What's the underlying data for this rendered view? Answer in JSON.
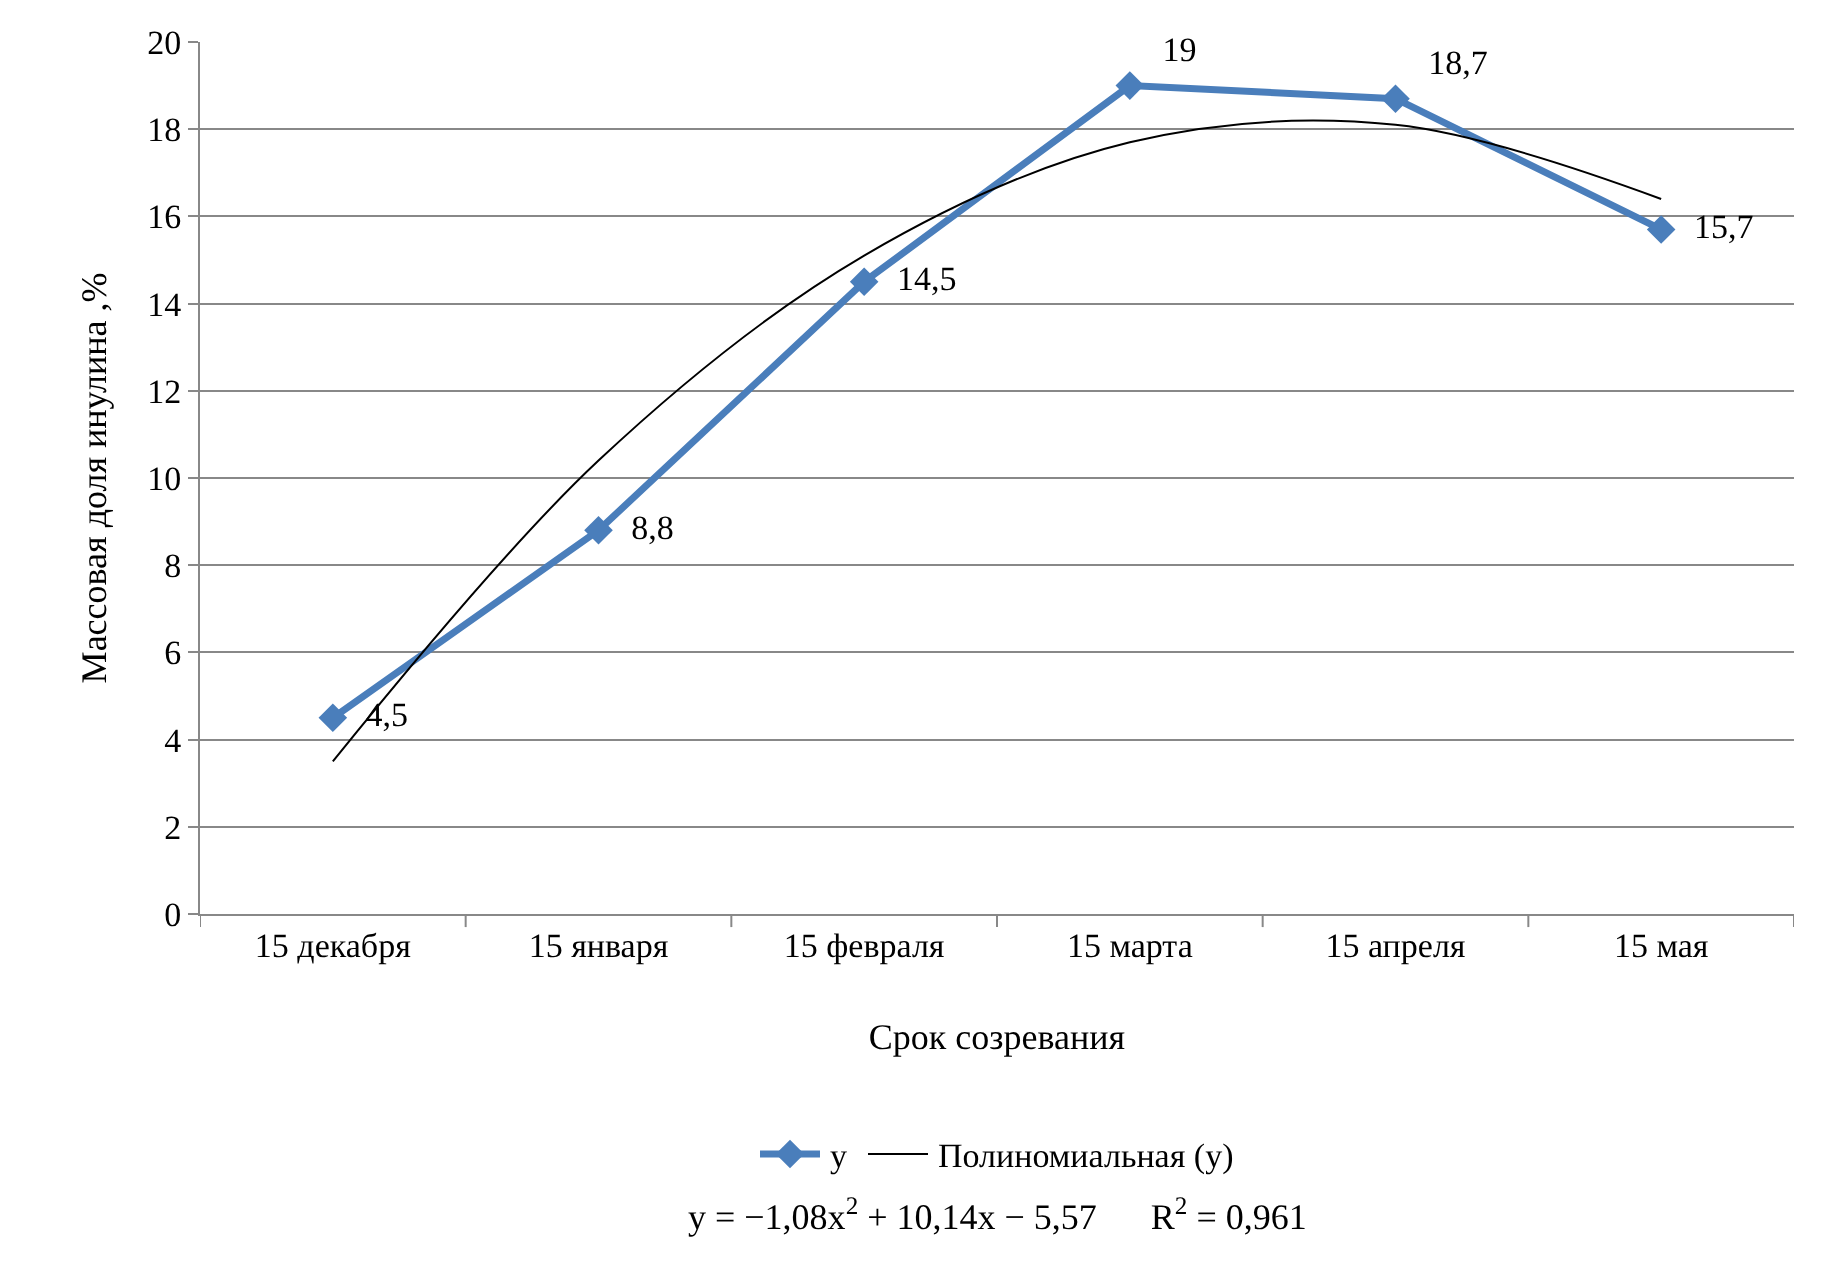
{
  "chart_data": {
    "type": "line",
    "xlabel": "Срок созревания",
    "ylabel": "Массовая доля инулина ,%",
    "categories": [
      "15 декабря",
      "15 января",
      "15 февраля",
      "15 марта",
      "15 апреля",
      "15 мая"
    ],
    "series": [
      {
        "name": "y",
        "color": "#4a7ebb",
        "values": [
          4.5,
          8.8,
          14.5,
          19,
          18.7,
          15.7
        ],
        "value_labels": [
          "4,5",
          "8,8",
          "14,5",
          "19",
          "18,7",
          "15,7"
        ],
        "marker": "diamond"
      },
      {
        "name": "Полиномиальная (y)",
        "type": "line",
        "color": "#000000",
        "values": [
          3.5,
          10.4,
          15.1,
          17.7,
          18.1,
          16.4
        ],
        "marker": "none"
      }
    ],
    "ylim": [
      0,
      20
    ],
    "yticks": [
      0,
      2,
      4,
      6,
      8,
      10,
      12,
      14,
      16,
      18,
      20
    ],
    "grid": "y",
    "legend": "bottom",
    "annotations": [
      "y = −1,08x$^{2}$ + 10,14x − 5,57      R$^{2}$ = 0,961"
    ]
  }
}
